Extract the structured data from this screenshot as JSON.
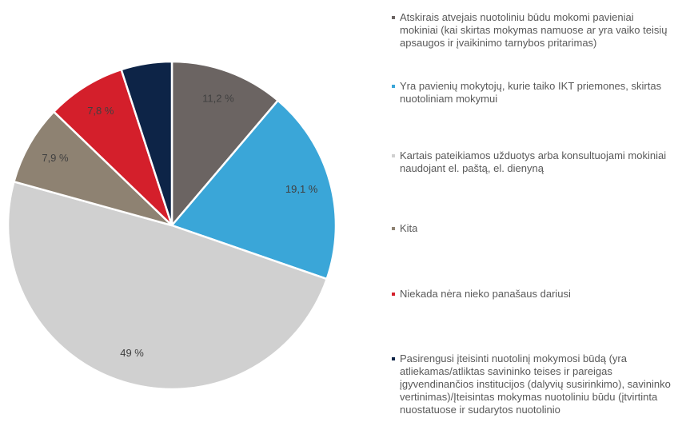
{
  "chart_data": {
    "type": "pie",
    "categories": [
      "Atskirais atvejais nuotoliniu būdu mokomi pavieniai mokiniai (kai skirtas mokymas namuose ar yra vaiko teisių apsaugos ir įvaikinimo tarnybos pritarimas)",
      "Yra pavienių mokytojų, kurie taiko IKT priemones, skirtas nuotoliniam mokymui",
      "Kartais pateikiamos užduotys arba konsultuojami mokiniai naudojant el. paštą, el. dienyną",
      "Kita",
      "Niekada nėra nieko panašaus dariusi",
      "Pasirengusi įteisinti nuotolinį mokymosi būdą (yra atliekamas/atliktas savininko teises ir pareigas įgyvendinančios institucijos (dalyvių susirinkimo), savininko vertinimas)/Įteisintas mokymas nuotoliniu būdu (įtvirtinta nuostatuose ir sudarytos nuotolinio"
    ],
    "values": [
      11.2,
      19.1,
      49,
      7.9,
      7.8,
      5
    ],
    "value_labels": [
      "11,2 %",
      "19,1 %",
      "49 %",
      "7,9 %",
      "7,8 %",
      null
    ],
    "colors": [
      "#6b6462",
      "#3aa6d8",
      "#d0d0d0",
      "#8e8272",
      "#d41f2b",
      "#0d2447"
    ],
    "legend": "right"
  }
}
